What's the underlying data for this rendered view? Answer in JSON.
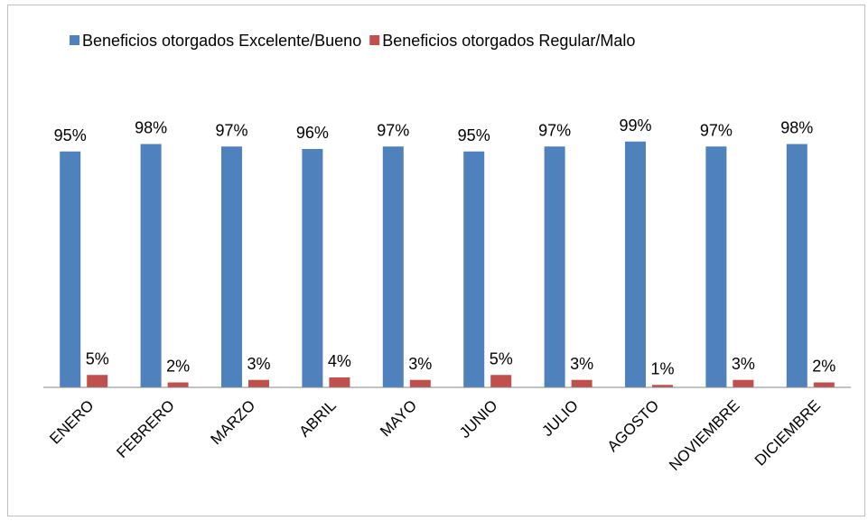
{
  "chart_data": {
    "type": "bar",
    "categories": [
      "ENERO",
      "FEBRERO",
      "MARZO",
      "ABRIL",
      "MAYO",
      "JUNIO",
      "JULIO",
      "AGOSTO",
      "NOVIEMBRE",
      "DICIEMBRE"
    ],
    "series": [
      {
        "name": "Beneficios otorgados Excelente/Bueno",
        "color": "#4f81bd",
        "values": [
          95,
          98,
          97,
          96,
          97,
          95,
          97,
          99,
          97,
          98
        ],
        "value_labels": [
          "95%",
          "98%",
          "97%",
          "96%",
          "97%",
          "95%",
          "97%",
          "99%",
          "97%",
          "98%"
        ]
      },
      {
        "name": "Beneficios otorgados Regular/Malo",
        "color": "#c0504d",
        "values": [
          5,
          2,
          3,
          4,
          3,
          5,
          3,
          1,
          3,
          2
        ],
        "value_labels": [
          "5%",
          "2%",
          "3%",
          "4%",
          "3%",
          "5%",
          "3%",
          "1%",
          "3%",
          "2%"
        ]
      }
    ],
    "ylim": [
      0,
      100
    ],
    "legend": "top"
  }
}
